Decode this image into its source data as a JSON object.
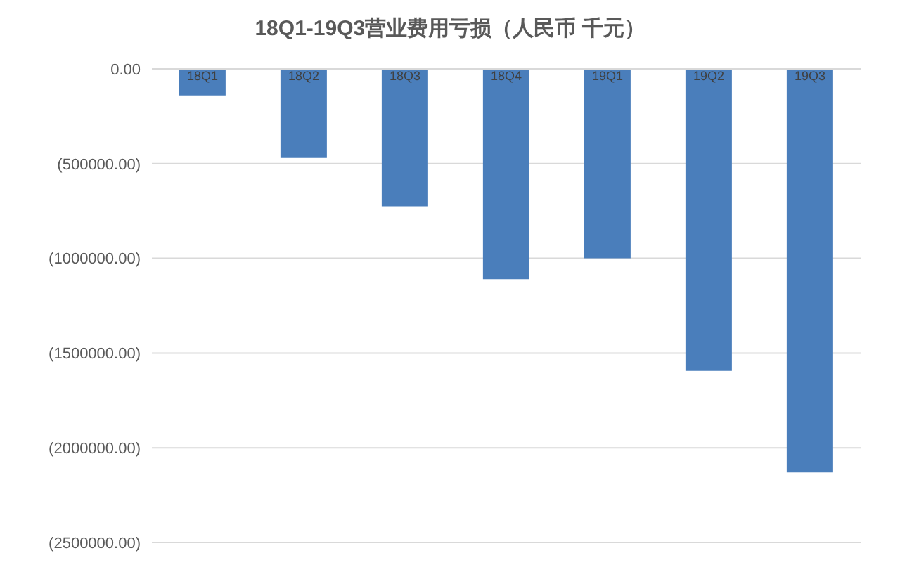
{
  "chart_data": {
    "type": "bar",
    "title": "18Q1-19Q3营业费用亏损（人民币 千元）",
    "categories": [
      "18Q1",
      "18Q2",
      "18Q3",
      "18Q4",
      "19Q1",
      "19Q2",
      "19Q3"
    ],
    "values": [
      -140000,
      -470000,
      -725000,
      -1110000,
      -1000000,
      -1594000,
      -2130000
    ],
    "color": "#4a7ebb",
    "ylim": [
      -2500000,
      0
    ],
    "yticks": [
      {
        "value": 0,
        "label": "0.00"
      },
      {
        "value": -500000,
        "label": "(500000.00)"
      },
      {
        "value": -1000000,
        "label": "(1000000.00)"
      },
      {
        "value": -1500000,
        "label": "(1500000.00)"
      },
      {
        "value": -2000000,
        "label": "(2000000.00)"
      },
      {
        "value": -2500000,
        "label": "(2500000.00)"
      }
    ],
    "grid": "y"
  }
}
